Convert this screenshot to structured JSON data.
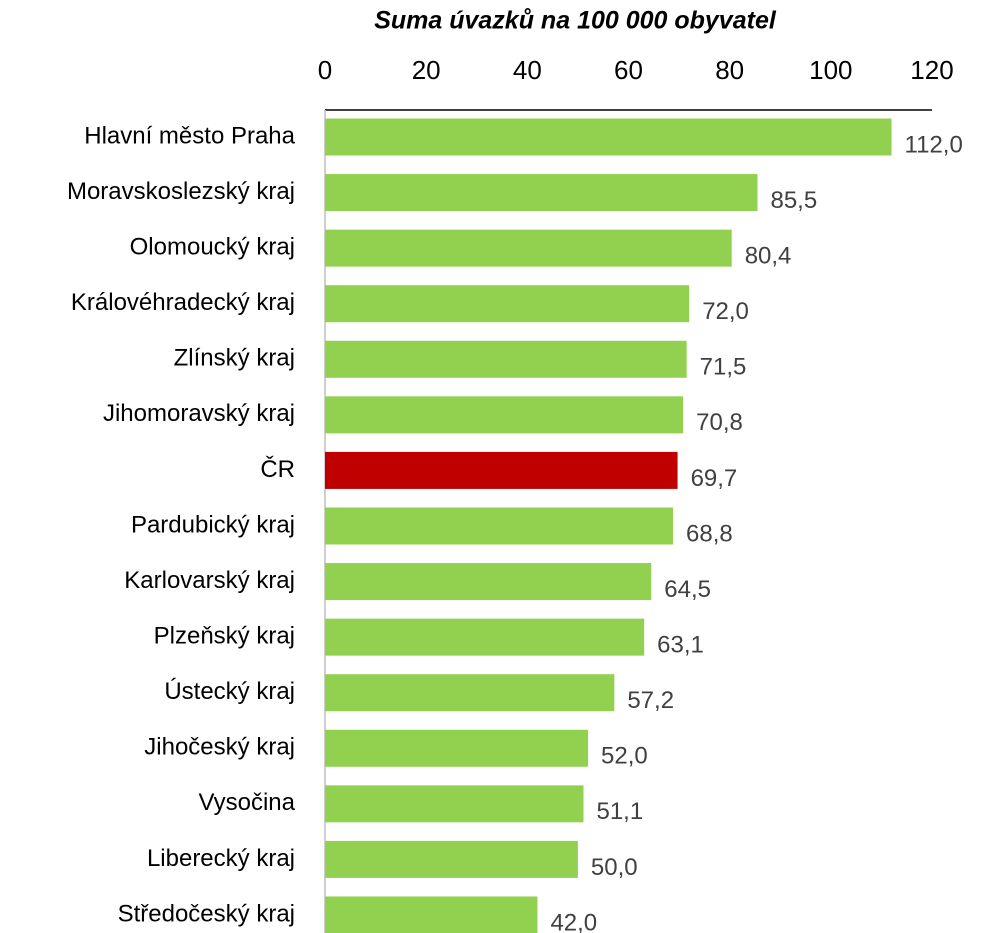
{
  "chart_data": {
    "type": "barh",
    "title": "Suma úvazků na 100 000 obyvatel",
    "categories": [
      "Hlavní město Praha",
      "Moravskoslezský kraj",
      "Olomoucký kraj",
      "Královéhradecký kraj",
      "Zlínský kraj",
      "Jihomoravský kraj",
      "ČR",
      "Pardubický kraj",
      "Karlovarský kraj",
      "Plzeňský kraj",
      "Ústecký kraj",
      "Jihočeský kraj",
      "Vysočina",
      "Liberecký kraj",
      "Středočeský kraj"
    ],
    "values": [
      112.0,
      85.5,
      80.4,
      72.0,
      71.5,
      70.8,
      69.7,
      68.8,
      64.5,
      63.1,
      57.2,
      52.0,
      51.1,
      50.0,
      42.0
    ],
    "value_labels": [
      "112,0",
      "85,5",
      "80,4",
      "72,0",
      "71,5",
      "70,8",
      "69,7",
      "68,8",
      "64,5",
      "63,1",
      "57,2",
      "52,0",
      "51,1",
      "50,0",
      "42,0"
    ],
    "colors": [
      "#92d050",
      "#92d050",
      "#92d050",
      "#92d050",
      "#92d050",
      "#92d050",
      "#c00000",
      "#92d050",
      "#92d050",
      "#92d050",
      "#92d050",
      "#92d050",
      "#92d050",
      "#92d050",
      "#92d050"
    ],
    "xlim": [
      0,
      120
    ],
    "xticks": [
      0,
      20,
      40,
      60,
      80,
      100,
      120
    ],
    "axis_position": "top",
    "grid": false
  }
}
